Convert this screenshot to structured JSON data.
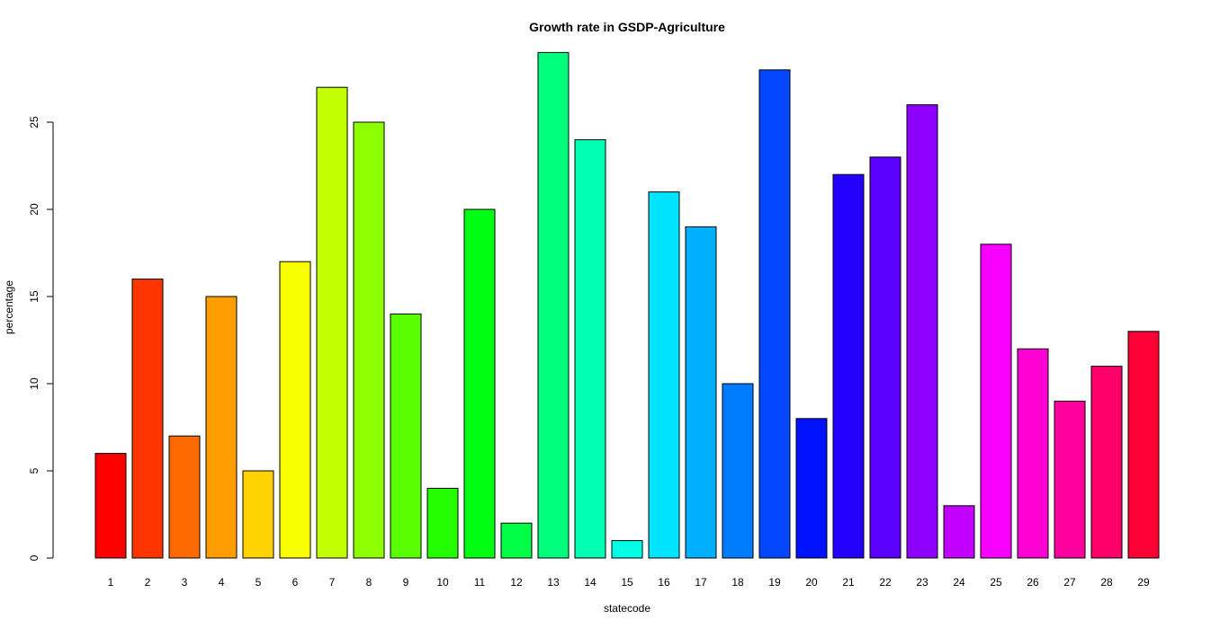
{
  "chart_data": {
    "type": "bar",
    "title": "Growth rate in GSDP-Agriculture",
    "xlabel": "statecode",
    "ylabel": "percentage",
    "categories": [
      "1",
      "2",
      "3",
      "4",
      "5",
      "6",
      "7",
      "8",
      "9",
      "10",
      "11",
      "12",
      "13",
      "14",
      "15",
      "16",
      "17",
      "18",
      "19",
      "20",
      "21",
      "22",
      "23",
      "24",
      "25",
      "26",
      "27",
      "28",
      "29"
    ],
    "values": [
      6,
      16,
      7,
      15,
      5,
      17,
      27,
      25,
      14,
      4,
      20,
      2,
      29,
      24,
      1,
      21,
      19,
      10,
      28,
      8,
      22,
      23,
      26,
      3,
      18,
      12,
      9,
      11,
      13
    ],
    "colors": [
      "#FF0000",
      "#FF3500",
      "#FF6A00",
      "#FF9E00",
      "#FFD300",
      "#F7FF00",
      "#C2FF00",
      "#8EFF00",
      "#59FF00",
      "#24FF00",
      "#00FF12",
      "#00FF47",
      "#00FF7C",
      "#00FFB0",
      "#00FFE5",
      "#00E5FF",
      "#00B0FF",
      "#007CFF",
      "#0047FF",
      "#0012FF",
      "#2400FF",
      "#5900FF",
      "#8E00FF",
      "#C200FF",
      "#F700FF",
      "#FF00D3",
      "#FF009E",
      "#FF006A",
      "#FF0035"
    ],
    "yticks": [
      0,
      5,
      10,
      15,
      20,
      25
    ],
    "ylim": [
      0,
      29
    ],
    "grid": false,
    "legend": "none"
  }
}
